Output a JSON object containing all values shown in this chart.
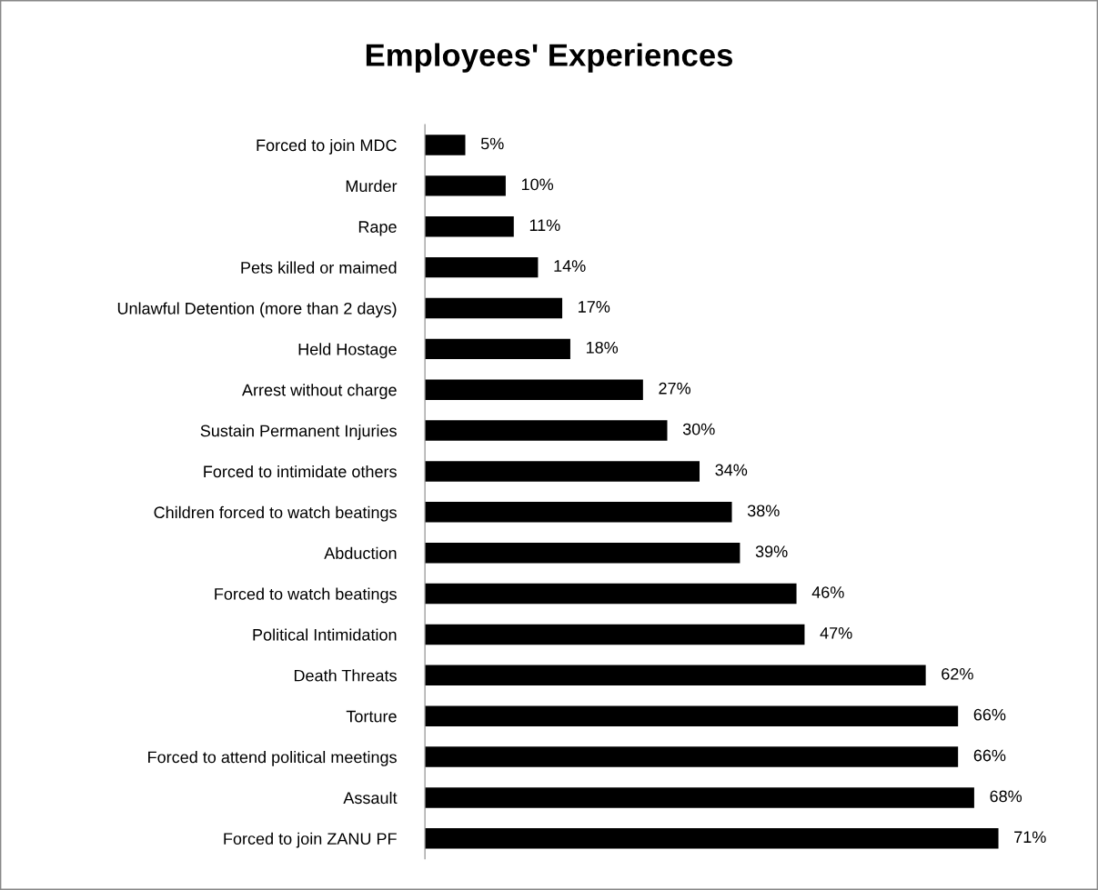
{
  "chart_data": {
    "type": "bar",
    "orientation": "horizontal",
    "title": "Employees' Experiences",
    "categories": [
      "Forced to join MDC",
      "Murder",
      "Rape",
      "Pets killed or maimed",
      "Unlawful Detention (more than 2 days)",
      "Held Hostage",
      "Arrest without charge",
      "Sustain Permanent Injuries",
      "Forced to intimidate others",
      "Children forced to watch beatings",
      "Abduction",
      "Forced to watch beatings",
      "Political Intimidation",
      "Death Threats",
      "Torture",
      "Forced to attend political meetings",
      "Assault",
      "Forced to join ZANU PF"
    ],
    "values": [
      5,
      10,
      11,
      14,
      17,
      18,
      27,
      30,
      34,
      38,
      39,
      46,
      47,
      62,
      66,
      66,
      68,
      71
    ],
    "value_labels": [
      "5%",
      "10%",
      "11%",
      "14%",
      "17%",
      "18%",
      "27%",
      "30%",
      "34%",
      "38%",
      "39%",
      "46%",
      "47%",
      "62%",
      "66%",
      "66%",
      "68%",
      "71%"
    ],
    "color": "#000000",
    "grid": false,
    "legend": false,
    "tick_labels": "y"
  }
}
